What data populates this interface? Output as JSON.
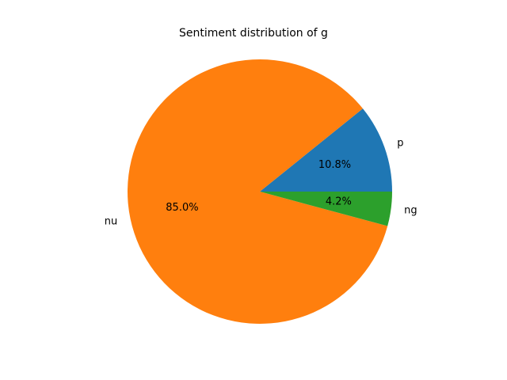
{
  "chart_data": {
    "type": "pie",
    "title": "Sentiment distribution of g",
    "start_angle_deg": 0,
    "direction": "counterclockwise",
    "slices": [
      {
        "label": "p",
        "value": 10.8,
        "pct_label": "10.8%",
        "color": "#1f77b4"
      },
      {
        "label": "nu",
        "value": 85.0,
        "pct_label": "85.0%",
        "color": "#ff7f0e"
      },
      {
        "label": "ng",
        "value": 4.2,
        "pct_label": "4.2%",
        "color": "#2ca02c"
      }
    ]
  }
}
